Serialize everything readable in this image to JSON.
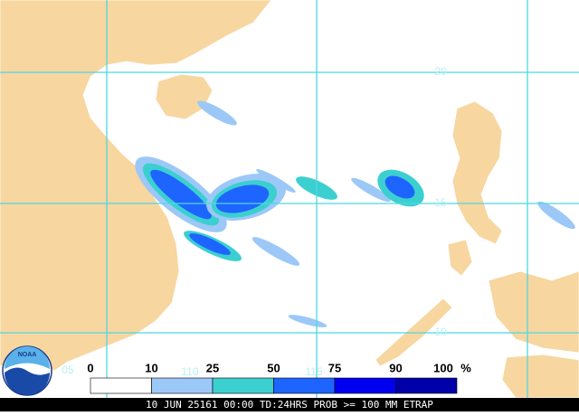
{
  "map": {
    "lat_labels": [
      "20",
      "15",
      "10",
      "05"
    ],
    "lon_labels": [
      "110",
      "115"
    ],
    "logo": "NOAA",
    "legend": {
      "items": [
        {
          "label": "0",
          "color": "#ffffff"
        },
        {
          "label": "10",
          "color": "#9cc8f8"
        },
        {
          "label": "25",
          "color": "#3ccfd0"
        },
        {
          "label": "50",
          "color": "#1e64ff"
        },
        {
          "label": "75",
          "color": "#0000f0"
        },
        {
          "label": "90",
          "color": "#0000a8"
        }
      ],
      "end_label": "100",
      "unit": "%"
    },
    "caption": "10 JUN 25161 00:00 TD:24HRS PROB >= 100 MM ETRAP"
  }
}
